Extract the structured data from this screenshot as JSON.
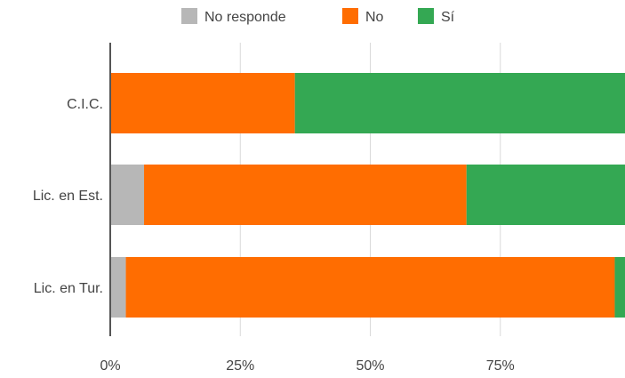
{
  "chart_data": {
    "type": "bar",
    "orientation": "horizontal",
    "stacked": true,
    "normalized": true,
    "categories": [
      "C.I.C.",
      "Lic. en Est.",
      "Lic. en Tur."
    ],
    "series": [
      {
        "name": "No responde",
        "color": "#b7b7b7",
        "values": [
          0,
          6.5,
          3
        ]
      },
      {
        "name": "No",
        "color": "#ff6d01",
        "values": [
          35.5,
          62,
          94
        ]
      },
      {
        "name": "Sí",
        "color": "#34a853",
        "values": [
          64.5,
          31.5,
          3
        ]
      }
    ],
    "xlim": [
      0,
      100
    ],
    "xticks": [
      "0%",
      "25%",
      "50%",
      "75%"
    ],
    "xtick_values": [
      0,
      25,
      50,
      75
    ],
    "grid": true,
    "legend_position": "top"
  }
}
